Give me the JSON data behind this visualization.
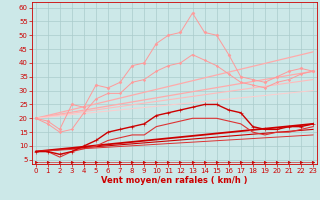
{
  "bg_color": "#cce8e8",
  "grid_color": "#aacccc",
  "xlabel": "Vent moyen/en rafales ( km/h )",
  "xlabel_color": "#cc0000",
  "xlabel_fontsize": 6,
  "xticks": [
    0,
    1,
    2,
    3,
    4,
    5,
    6,
    7,
    8,
    9,
    10,
    11,
    12,
    13,
    14,
    15,
    16,
    17,
    18,
    19,
    20,
    21,
    22,
    23
  ],
  "yticks": [
    5,
    10,
    15,
    20,
    25,
    30,
    35,
    40,
    45,
    50,
    55,
    60
  ],
  "xlim": [
    -0.3,
    23.3
  ],
  "ylim": [
    3.5,
    62
  ],
  "tick_color": "#cc0000",
  "tick_fontsize": 5.0,
  "series": [
    {
      "name": "line1_light_jagged_upper",
      "x": [
        0,
        1,
        2,
        3,
        4,
        5,
        6,
        7,
        8,
        9,
        10,
        11,
        12,
        13,
        14,
        15,
        16,
        17,
        18,
        19,
        20,
        21,
        22,
        23
      ],
      "y": [
        20,
        19,
        16,
        25,
        24,
        32,
        31,
        33,
        39,
        40,
        47,
        50,
        51,
        58,
        51,
        50,
        43,
        35,
        34,
        33,
        35,
        37,
        38,
        37
      ],
      "color": "#ff9999",
      "lw": 0.7,
      "marker": "D",
      "ms": 1.5,
      "zorder": 3
    },
    {
      "name": "line2_light_jagged_lower",
      "x": [
        0,
        1,
        2,
        3,
        4,
        5,
        6,
        7,
        8,
        9,
        10,
        11,
        12,
        13,
        14,
        15,
        16,
        17,
        18,
        19,
        20,
        21,
        22,
        23
      ],
      "y": [
        20,
        18,
        15,
        16,
        22,
        27,
        29,
        29,
        33,
        34,
        37,
        39,
        40,
        43,
        41,
        39,
        36,
        33,
        32,
        31,
        33,
        34,
        36,
        37
      ],
      "color": "#ff9999",
      "lw": 0.7,
      "marker": "D",
      "ms": 1.2,
      "zorder": 3
    },
    {
      "name": "line3_straight_top",
      "x": [
        0,
        23
      ],
      "y": [
        20,
        44
      ],
      "color": "#ffaaaa",
      "lw": 0.9,
      "marker": null,
      "ms": 0,
      "zorder": 2
    },
    {
      "name": "line4_straight_mid",
      "x": [
        0,
        23
      ],
      "y": [
        20,
        37
      ],
      "color": "#ffaaaa",
      "lw": 0.9,
      "marker": null,
      "ms": 0,
      "zorder": 2
    },
    {
      "name": "line5_straight_lower",
      "x": [
        0,
        23
      ],
      "y": [
        20,
        34
      ],
      "color": "#ffbbbb",
      "lw": 0.8,
      "marker": null,
      "ms": 0,
      "zorder": 2
    },
    {
      "name": "line6_straight_lowest",
      "x": [
        0,
        23
      ],
      "y": [
        20,
        30
      ],
      "color": "#ffcccc",
      "lw": 0.7,
      "marker": null,
      "ms": 0,
      "zorder": 2
    },
    {
      "name": "line7_dark_bell_upper",
      "x": [
        0,
        1,
        2,
        3,
        4,
        5,
        6,
        7,
        8,
        9,
        10,
        11,
        12,
        13,
        14,
        15,
        16,
        17,
        18,
        19,
        20,
        21,
        22,
        23
      ],
      "y": [
        8,
        8,
        7,
        8,
        10,
        12,
        15,
        16,
        17,
        18,
        21,
        22,
        23,
        24,
        25,
        25,
        23,
        22,
        17,
        16,
        16,
        17,
        17,
        18
      ],
      "color": "#cc0000",
      "lw": 1.0,
      "marker": "+",
      "ms": 2.5,
      "zorder": 5
    },
    {
      "name": "line8_dark_bell_lower",
      "x": [
        0,
        1,
        2,
        3,
        4,
        5,
        6,
        7,
        8,
        9,
        10,
        11,
        12,
        13,
        14,
        15,
        16,
        17,
        18,
        19,
        20,
        21,
        22,
        23
      ],
      "y": [
        8,
        8,
        6,
        8,
        9,
        10,
        12,
        13,
        14,
        14,
        17,
        18,
        19,
        20,
        20,
        20,
        19,
        18,
        15,
        14,
        15,
        15,
        16,
        17
      ],
      "color": "#dd3333",
      "lw": 0.8,
      "marker": null,
      "ms": 0,
      "zorder": 4
    },
    {
      "name": "line9_dark_straight_upper",
      "x": [
        0,
        23
      ],
      "y": [
        8,
        18
      ],
      "color": "#cc0000",
      "lw": 1.3,
      "marker": null,
      "ms": 0,
      "zorder": 3
    },
    {
      "name": "line10_dark_straight_lower",
      "x": [
        0,
        23
      ],
      "y": [
        8,
        16
      ],
      "color": "#cc0000",
      "lw": 0.8,
      "marker": null,
      "ms": 0,
      "zorder": 3
    },
    {
      "name": "line11_dark_straight_lowest",
      "x": [
        0,
        23
      ],
      "y": [
        8,
        14
      ],
      "color": "#dd3333",
      "lw": 0.7,
      "marker": null,
      "ms": 0,
      "zorder": 3
    },
    {
      "name": "line12_arrow_bottom",
      "x": [
        0,
        1,
        2,
        3,
        4,
        5,
        6,
        7,
        8,
        9,
        10,
        11,
        12,
        13,
        14,
        15,
        16,
        17,
        18,
        19,
        20,
        21,
        22,
        23
      ],
      "y": [
        4.2,
        4.2,
        4.2,
        4.2,
        4.2,
        4.2,
        4.2,
        4.2,
        4.2,
        4.2,
        4.2,
        4.2,
        4.2,
        4.2,
        4.2,
        4.2,
        4.2,
        4.2,
        4.2,
        4.2,
        4.2,
        4.2,
        4.2,
        4.2
      ],
      "color": "#cc0000",
      "lw": 0.4,
      "marker": ">",
      "ms": 1.8,
      "zorder": 6
    }
  ]
}
